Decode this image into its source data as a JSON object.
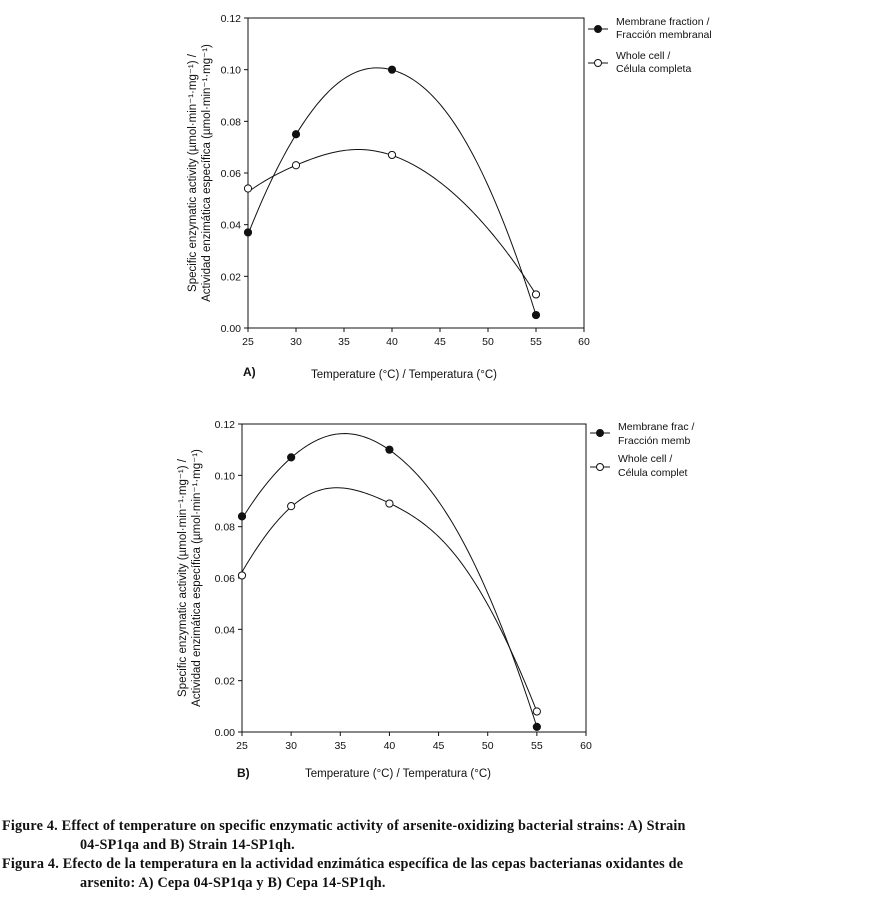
{
  "chart_data": [
    {
      "type": "line",
      "panel_label": "A)",
      "xlabel": "Temperature (°C) / Temperatura (°C)",
      "ylabel_line1": "Specific enzymatic activity (µmol·min⁻¹·mg⁻¹) /",
      "ylabel_line2": "Actividad enzimática específica (µmol·min⁻¹·mg⁻¹)",
      "xlim": [
        25,
        60
      ],
      "ylim": [
        0,
        0.12
      ],
      "xticks": [
        25,
        30,
        35,
        40,
        45,
        50,
        55,
        60
      ],
      "yticks": [
        0.0,
        0.02,
        0.04,
        0.06,
        0.08,
        0.1,
        0.12
      ],
      "legend_position": "top-right-outside",
      "series": [
        {
          "name_line1": "Membrane fraction /",
          "name_line2": "Fracción membranal",
          "marker": "filled-circle",
          "x": [
            25,
            30,
            40,
            55
          ],
          "values": [
            0.037,
            0.075,
            0.1,
            0.005
          ],
          "fit_peak": [
            37.8,
            0.1025
          ]
        },
        {
          "name_line1": "Whole cell /",
          "name_line2": "Célula completa",
          "marker": "open-circle",
          "x": [
            25,
            30,
            40,
            55
          ],
          "values": [
            0.054,
            0.063,
            0.067,
            0.013
          ],
          "fit_peak": [
            36,
            0.07
          ]
        }
      ]
    },
    {
      "type": "line",
      "panel_label": "B)",
      "xlabel": "Temperature (°C) / Temperatura (°C)",
      "ylabel_line1": "Specific enzymatic activity (µmol·min⁻¹·mg⁻¹) /",
      "ylabel_line2": "Actividad enzimática específica (µmol·min⁻¹·mg⁻¹)",
      "xlim": [
        25,
        60
      ],
      "ylim": [
        0,
        0.12
      ],
      "xticks": [
        25,
        30,
        35,
        40,
        45,
        50,
        55,
        60
      ],
      "yticks": [
        0.0,
        0.02,
        0.04,
        0.06,
        0.08,
        0.1,
        0.12
      ],
      "legend_position": "top-right-outside",
      "series": [
        {
          "name_line1": "Membrane frac /",
          "name_line2": "Fracción memb",
          "marker": "filled-circle",
          "x": [
            25,
            30,
            40,
            55
          ],
          "values": [
            0.084,
            0.107,
            0.11,
            0.002
          ],
          "fit_peak": [
            35.5,
            0.1185
          ]
        },
        {
          "name_line1": "Whole cell /",
          "name_line2": "Célula complet",
          "marker": "open-circle",
          "x": [
            25,
            30,
            40,
            55
          ],
          "values": [
            0.061,
            0.088,
            0.089,
            0.008
          ],
          "fit_peak": [
            35.2,
            0.0965
          ]
        }
      ]
    }
  ],
  "caption": {
    "en_line1": "Figure 4. Effect of temperature on specific enzymatic activity of arsenite-oxidizing bacterial strains: A) Strain",
    "en_line2": "04-SP1qa and B) Strain 14-SP1qh.",
    "es_line1": "Figura 4. Efecto de la temperatura en la actividad enzimática específica de las cepas bacterianas oxidantes de",
    "es_line2": "arsenito: A) Cepa 04-SP1qa y B) Cepa 14-SP1qh."
  }
}
